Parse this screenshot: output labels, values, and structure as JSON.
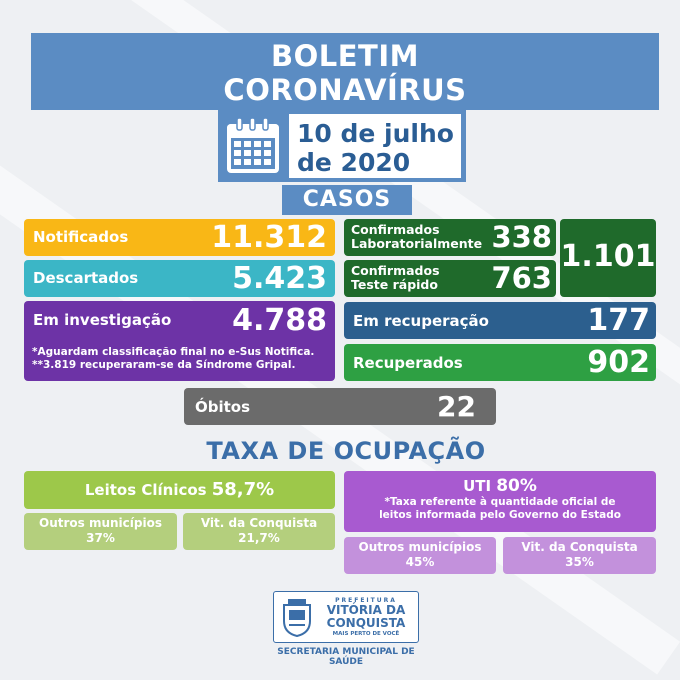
{
  "header": {
    "line1": "BOLETIM",
    "line2": "CORONAVÍRUS"
  },
  "date": {
    "line1": "10 de julho",
    "line2": "de 2020"
  },
  "casos": {
    "title": "CASOS",
    "notificados": {
      "label": "Notificados",
      "value": "11.312"
    },
    "descartados": {
      "label": "Descartados",
      "value": "5.423"
    },
    "investigacao": {
      "label": "Em investigação",
      "value": "4.788",
      "note1": "*Aguardam classificação final no e-Sus Notifica.",
      "note2": "**3.819 recuperaram-se da Síndrome Gripal."
    },
    "conf_lab": {
      "label1": "Confirmados",
      "label2": "Laboratorialmente",
      "value": "338"
    },
    "conf_rapido": {
      "label1": "Confirmados",
      "label2": "Teste rápido",
      "value": "763"
    },
    "total_confirmados": "1.101",
    "recuperacao": {
      "label": "Em recuperação",
      "value": "177"
    },
    "recuperados": {
      "label": "Recuperados",
      "value": "902"
    },
    "obitos": {
      "label": "Óbitos",
      "value": "22"
    }
  },
  "ocupacao": {
    "title": "TAXA DE OCUPAÇÃO",
    "leitos": {
      "label": "Leitos Clínicos",
      "value": "58,7%",
      "outros_label": "Outros municípios",
      "outros_value": "37%",
      "vit_label": "Vit. da Conquista",
      "vit_value": "21,7%"
    },
    "uti": {
      "label": "UTI",
      "value": "80%",
      "note1": "*Taxa referente à quantidade oficial de",
      "note2": "leitos informada pelo Governo do Estado",
      "outros_label": "Outros municípios",
      "outros_value": "45%",
      "vit_label": "Vit. da Conquista",
      "vit_value": "35%"
    }
  },
  "footer": {
    "logo_top": "PREFEITURA",
    "logo_name1": "VITÓRIA DA",
    "logo_name2": "CONQUISTA",
    "logo_tagline": "MAIS PERTO DE VOCÊ",
    "secretaria1": "SECRETARIA MUNICIPAL DE",
    "secretaria2": "SAÚDE"
  },
  "colors": {
    "blue": "#5b8cc3",
    "yellow": "#f9b716",
    "teal": "#3bb6c6",
    "purple": "#6d33a6",
    "dark_green": "#1f6a2b",
    "green": "#2ea043",
    "navy": "#2c5f8e",
    "gray": "#6b6b6b",
    "lime": "#9dc84a",
    "violet": "#a85ad0"
  }
}
